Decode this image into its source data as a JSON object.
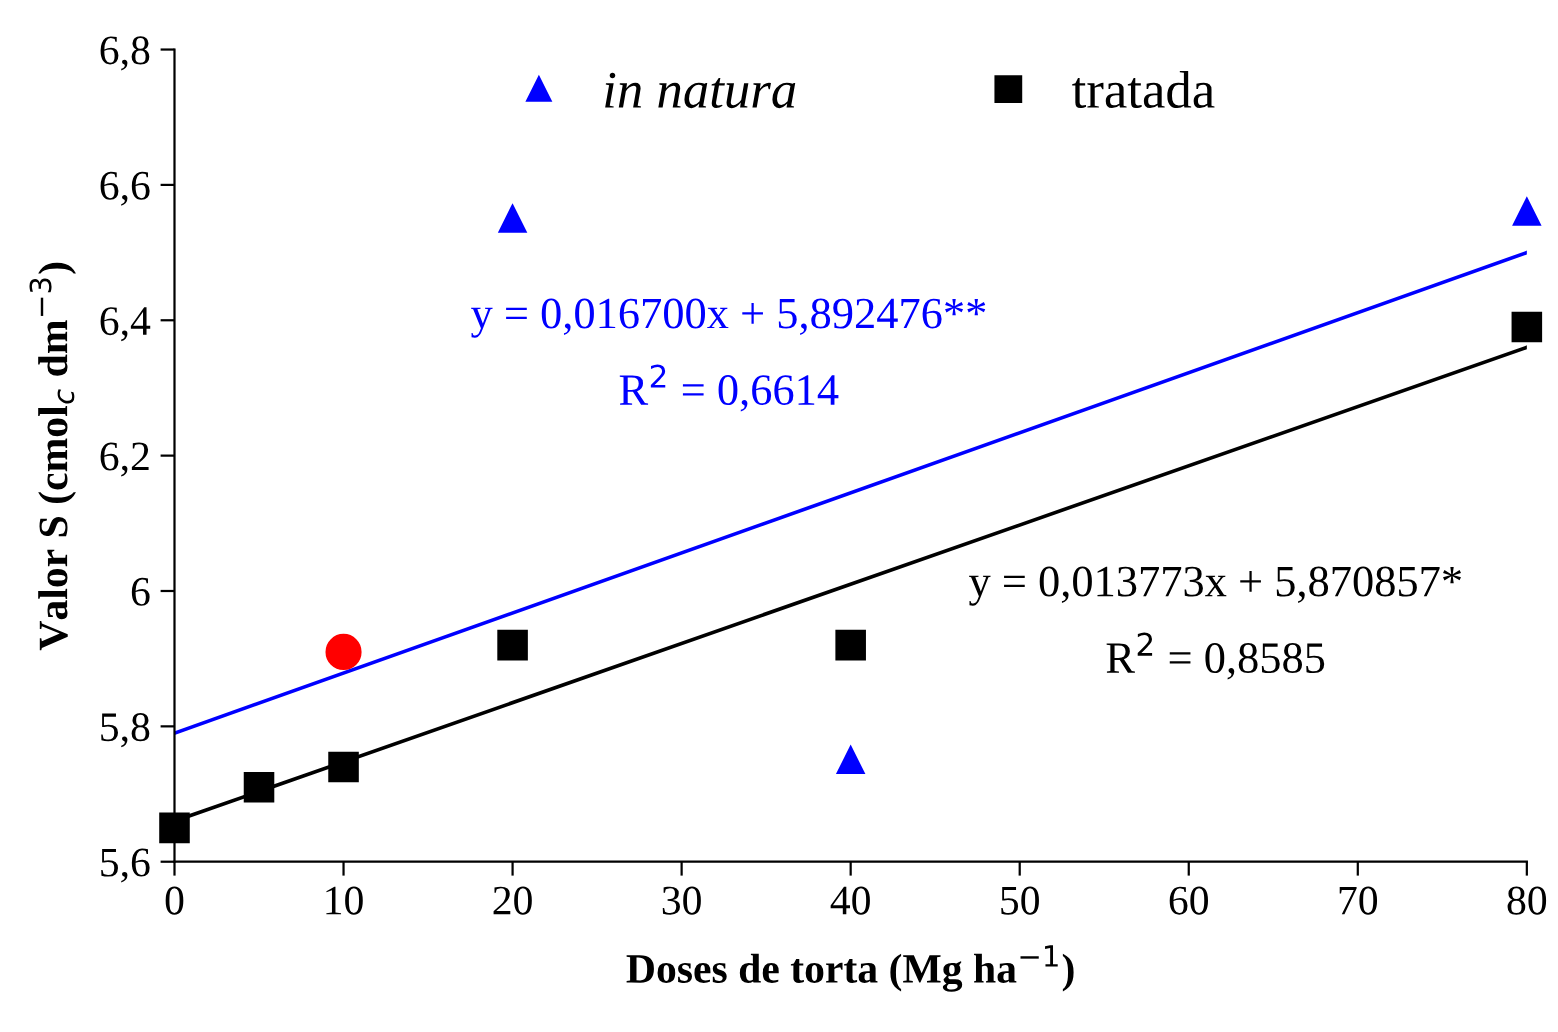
{
  "chart_data": {
    "type": "scatter",
    "xlabel": "Doses de torta (Mg ha$^{−1}$)",
    "ylabel": "Valor S (cmol$_{c}$ dm$^{−3}$)",
    "series": [
      {
        "name": "in natura",
        "marker": "triangle",
        "color": "#0000ff",
        "x": [
          20,
          40,
          80
        ],
        "values": [
          6.55,
          5.75,
          6.56
        ]
      },
      {
        "name": "tratada",
        "marker": "square",
        "color": "#000000",
        "x": [
          0,
          5,
          10,
          20,
          40,
          80
        ],
        "values": [
          5.65,
          5.71,
          5.74,
          5.92,
          5.92,
          6.39
        ]
      },
      {
        "marker": "circle",
        "color": "#ff0000",
        "x": [
          10
        ],
        "values": [
          5.91
        ]
      },
      {
        "type": "line",
        "marker": "none",
        "color": "#0000ff",
        "x": [
          0,
          80
        ],
        "values": [
          5.79,
          6.5
        ]
      },
      {
        "type": "line",
        "marker": "none",
        "color": "#000000",
        "x": [
          0,
          80
        ],
        "values": [
          5.66,
          6.36
        ]
      }
    ],
    "annotations": [
      "y = 0,016700x + 5,892476**",
      "R$^{2}$ = 0,6614",
      "y = 0,013773x + 5,870857*",
      "R$^{2}$ = 0,8585"
    ],
    "xlim": [
      0,
      80
    ],
    "xticks": [
      0,
      10,
      20,
      30,
      40,
      50,
      60,
      70,
      80
    ],
    "ylim": [
      5.6,
      6.8
    ],
    "yticks": [
      {
        "value": 5.6,
        "label": "5,6"
      },
      {
        "value": 5.8,
        "label": "5,8"
      },
      {
        "value": 6,
        "label": "6"
      },
      {
        "value": 6.2,
        "label": "6,2"
      },
      {
        "value": 6.4,
        "label": "6,4"
      },
      {
        "value": 6.6,
        "label": "6,6"
      },
      {
        "value": 6.8,
        "label": "6,8"
      }
    ],
    "grid": false,
    "legend": "top"
  }
}
